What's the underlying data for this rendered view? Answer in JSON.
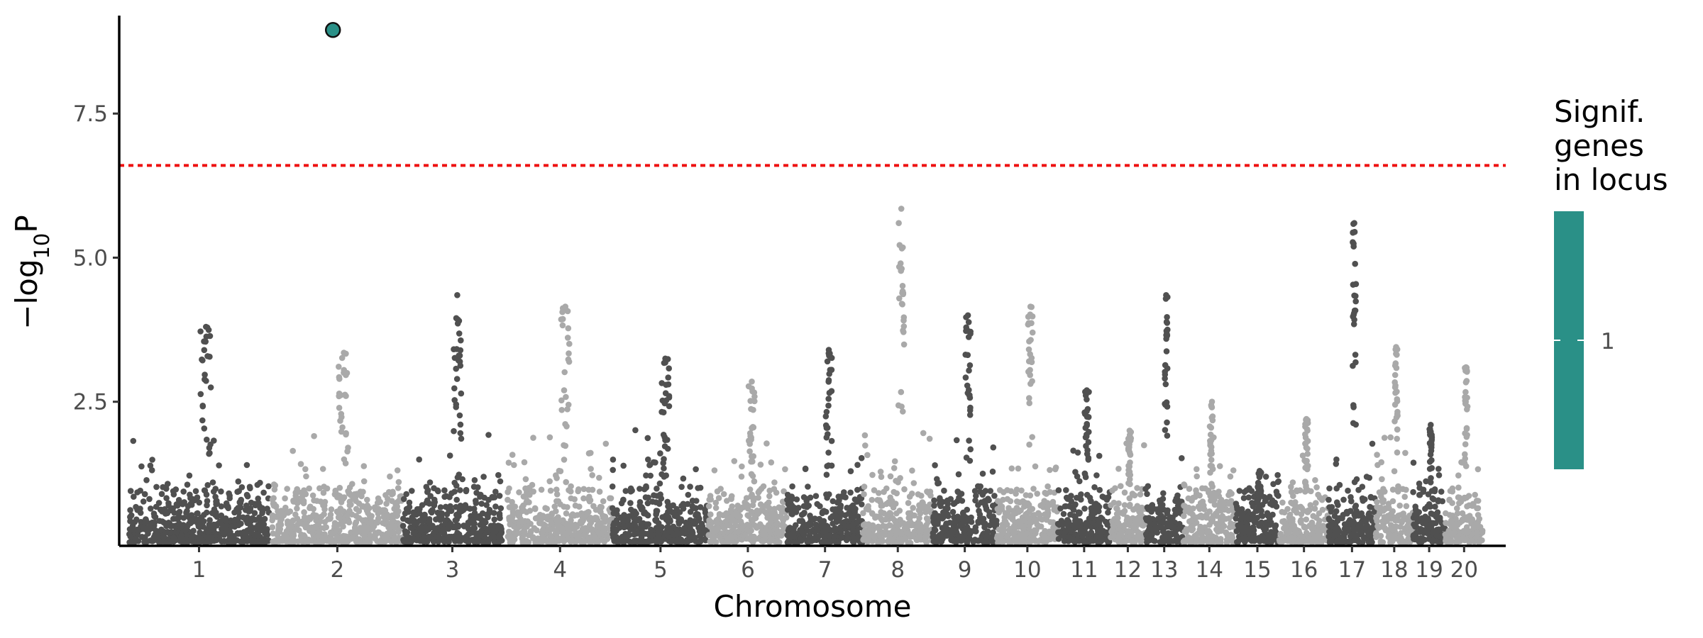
{
  "chart_data": {
    "type": "scatter",
    "title": "",
    "xlabel": "Chromosome",
    "ylabel_parts": {
      "main": "−log",
      "sub": "10",
      "tail": "P"
    },
    "ylim": [
      0,
      9.2
    ],
    "y_ticks": [
      2.5,
      5.0,
      7.5
    ],
    "y_tick_labels": [
      "2.5",
      "5.0",
      "7.5"
    ],
    "threshold": {
      "value": 6.6,
      "color": "#ee1111",
      "style": "dotted"
    },
    "colors": {
      "dark": "#505050",
      "light": "#a9a9a9",
      "significant": "#2a9087"
    },
    "chromosomes": [
      {
        "label": "1",
        "start": 0.0,
        "end": 24.0,
        "peak": 3.8
      },
      {
        "label": "2",
        "start": 24.5,
        "end": 47.0,
        "peak": 3.35
      },
      {
        "label": "3",
        "start": 47.0,
        "end": 64.0,
        "peak": 4.35
      },
      {
        "label": "4",
        "start": 65.0,
        "end": 83.0,
        "peak": 4.15
      },
      {
        "label": "5",
        "start": 83.0,
        "end": 99.5,
        "peak": 3.25
      },
      {
        "label": "6",
        "start": 99.5,
        "end": 113.0,
        "peak": 2.85
      },
      {
        "label": "7",
        "start": 113.0,
        "end": 126.0,
        "peak": 3.4
      },
      {
        "label": "8",
        "start": 126.0,
        "end": 138.0,
        "peak": 5.85
      },
      {
        "label": "9",
        "start": 138.0,
        "end": 149.0,
        "peak": 4.0
      },
      {
        "label": "10",
        "start": 149.0,
        "end": 159.5,
        "peak": 4.15
      },
      {
        "label": "11",
        "start": 159.5,
        "end": 168.5,
        "peak": 2.7
      },
      {
        "label": "12",
        "start": 168.5,
        "end": 174.5,
        "peak": 2.0
      },
      {
        "label": "13",
        "start": 174.5,
        "end": 181.0,
        "peak": 4.35
      },
      {
        "label": "14",
        "start": 181.0,
        "end": 190.0,
        "peak": 2.5
      },
      {
        "label": "15",
        "start": 190.0,
        "end": 197.5,
        "peak": 1.3
      },
      {
        "label": "16",
        "start": 197.5,
        "end": 206.0,
        "peak": 2.2
      },
      {
        "label": "17",
        "start": 206.0,
        "end": 214.0,
        "peak": 5.6
      },
      {
        "label": "18",
        "start": 214.0,
        "end": 220.5,
        "peak": 3.45
      },
      {
        "label": "19",
        "start": 220.5,
        "end": 226.0,
        "peak": 2.1
      },
      {
        "label": "20",
        "start": 226.0,
        "end": 232.5,
        "peak": 3.1
      }
    ],
    "significant_points": [
      {
        "chromosome": "2",
        "position": 35.0,
        "value": 8.95
      }
    ],
    "legend": {
      "title": [
        "Signif.",
        "genes",
        "in locus"
      ],
      "labels": [
        "1"
      ],
      "color": "#2a9087"
    }
  }
}
